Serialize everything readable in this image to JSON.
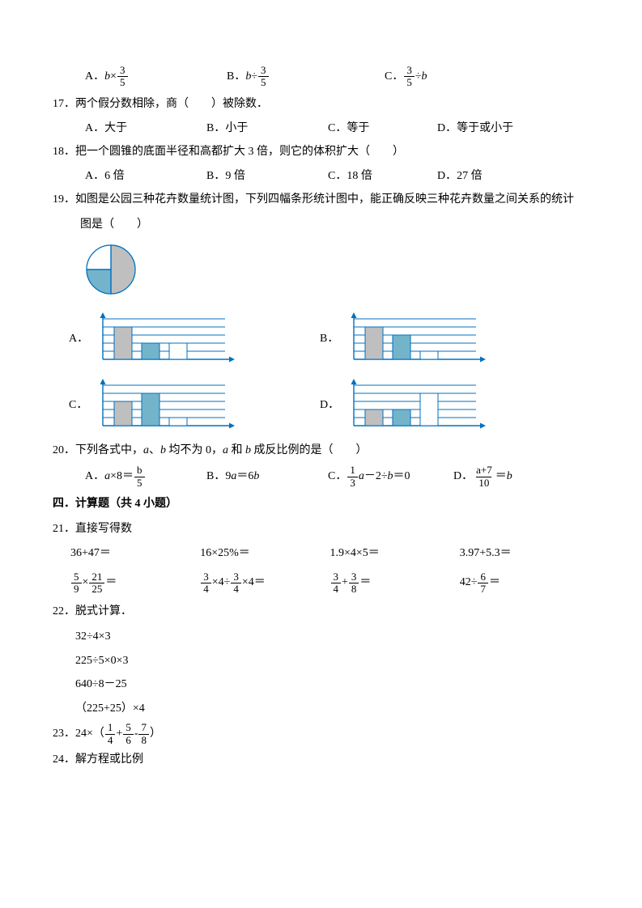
{
  "q16_opts": {
    "A": {
      "pre": "A．",
      "var": "b",
      "op": "×",
      "frac": {
        "n": "3",
        "d": "5"
      }
    },
    "B": {
      "pre": "B．",
      "var": "b",
      "op": "÷",
      "frac": {
        "n": "3",
        "d": "5"
      }
    },
    "C": {
      "pre": "C．",
      "frac": {
        "n": "3",
        "d": "5"
      },
      "op": "÷",
      "var": "b"
    }
  },
  "q17": {
    "num": "17．",
    "text": "两个假分数相除，商（　　）被除数．",
    "opts": {
      "A": "A．大于",
      "B": "B．小于",
      "C": "C．等于",
      "D": "D．等于或小于"
    }
  },
  "q18": {
    "num": "18．",
    "text": "把一个圆锥的底面半径和高都扩大 3 倍，则它的体积扩大（　　）",
    "opts": {
      "A": "A．6 倍",
      "B": "B．9 倍",
      "C": "C．18 倍",
      "D": "D．27 倍"
    }
  },
  "q19": {
    "num": "19．",
    "text": "如图是公园三种花卉数量统计图，下列四幅条形统计图中，能正确反映三种花卉数量之间关系的统计",
    "text2": "图是（　　）",
    "pie": {
      "slice1": {
        "color": "#bfbfbf",
        "start": 0,
        "sweep": 180
      },
      "slice2": {
        "color": "#74b4cb",
        "start": 180,
        "sweep": 90
      },
      "slice3": {
        "color": "#ffffff",
        "start": 270,
        "sweep": 90
      },
      "stroke": "#0070c0"
    },
    "chart_style": {
      "axis_color": "#0070c0",
      "grid_color": "#0070c0",
      "bar_colors": [
        "#bfbfbf",
        "#74b4cb",
        "#ffffff"
      ],
      "bar_stroke": "#0070c0",
      "grid_rows": 5
    },
    "charts": {
      "A": {
        "label": "A．",
        "bars": [
          4,
          2,
          2
        ]
      },
      "B": {
        "label": "B．",
        "bars": [
          4,
          3,
          1
        ]
      },
      "C": {
        "label": "C．",
        "bars": [
          3,
          4,
          1
        ]
      },
      "D": {
        "label": "D．",
        "bars": [
          2,
          2,
          4
        ]
      }
    }
  },
  "q20": {
    "num": "20．",
    "text_pre": "下列各式中，",
    "text_mid": "、",
    "text_mid2": " 均不为 0，",
    "text_mid3": " 和 ",
    "text_end": " 成反比例的是（　　）",
    "opts": {
      "A": {
        "pre": "A．",
        "lhs_var": "a",
        "lhs_op": "×8＝",
        "frac": {
          "n": "b",
          "d": "5"
        }
      },
      "B": {
        "pre": "B．9",
        "var1": "a",
        "mid": "＝6",
        "var2": "b"
      },
      "C": {
        "pre": "C．",
        "frac": {
          "n": "1",
          "d": "3"
        },
        "mid1": " ",
        "var1": "a",
        "mid2": "－2÷",
        "var2": "b",
        "end": "＝0"
      },
      "D": {
        "pre": "D．",
        "frac": {
          "n": "a+7",
          "d": "10"
        },
        "mid": "＝",
        "var": "b"
      }
    }
  },
  "sec4": "四．计算题（共 4 小题）",
  "q21": {
    "num": "21．",
    "text": "直接写得数",
    "row1": [
      "36+47＝",
      "16×25%＝",
      "1.9×4×5＝",
      "3.97+5.3＝"
    ]
  },
  "q21_row2": {
    "c1": {
      "f1": {
        "n": "5",
        "d": "9"
      },
      "op": "×",
      "f2": {
        "n": "21",
        "d": "25"
      },
      "eq": "＝"
    },
    "c2": {
      "f1": {
        "n": "3",
        "d": "4"
      },
      "op1": "×4÷",
      "f2": {
        "n": "3",
        "d": "4"
      },
      "op2": "×4＝"
    },
    "c3": {
      "f1": {
        "n": "3",
        "d": "4"
      },
      "op": "+",
      "f2": {
        "n": "3",
        "d": "8"
      },
      "eq": "＝"
    },
    "c4": {
      "pre": "42÷",
      "f": {
        "n": "6",
        "d": "7"
      },
      "eq": "＝"
    }
  },
  "q22": {
    "num": "22．",
    "text": "脱式计算．",
    "lines": [
      "32÷4×3",
      "225÷5×0×3",
      "640÷8－25",
      "（225+25）×4"
    ]
  },
  "q23": {
    "num": "23．",
    "pre": "24×（",
    "f1": {
      "n": "1",
      "d": "4"
    },
    "op1": "+",
    "f2": {
      "n": "5",
      "d": "6"
    },
    "op2": "-",
    "f3": {
      "n": "7",
      "d": "8"
    },
    "end": "）"
  },
  "q24": {
    "num": "24．",
    "text": "解方程或比例"
  }
}
